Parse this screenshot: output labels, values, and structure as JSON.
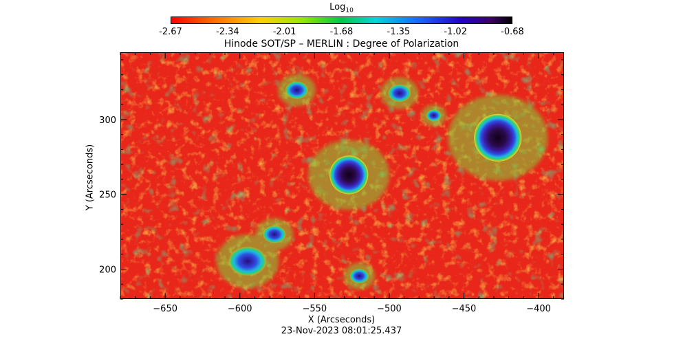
{
  "chart_data": {
    "type": "heatmap",
    "title": "Hinode SOT/SP – MERLIN : Degree of Polarization",
    "colorbar": {
      "label": "Log",
      "label_subscript": "10",
      "ticks": [
        "-2.67",
        "-2.34",
        "-2.01",
        "-1.68",
        "-1.35",
        "-1.02",
        "-0.68"
      ],
      "range": [
        -2.67,
        -0.68
      ],
      "colormap": "rainbow (red → yellow → green → cyan → blue → violet → black)"
    },
    "xlabel": "X (Arcseconds)",
    "ylabel": "Y (Arcseconds)",
    "xlim": [
      -680,
      -383
    ],
    "ylim": [
      180,
      345
    ],
    "x_ticks": [
      "−650",
      "−600",
      "−550",
      "−500",
      "−450",
      "−400"
    ],
    "x_tick_values": [
      -650,
      -600,
      -550,
      -500,
      -450,
      -400
    ],
    "y_ticks": [
      "200",
      "250",
      "300"
    ],
    "y_tick_values": [
      200,
      250,
      300
    ],
    "features": [
      {
        "name": "sunspot",
        "x": -427,
        "y": 288,
        "r": 16
      },
      {
        "name": "sunspot",
        "x": -527,
        "y": 263,
        "r": 13
      },
      {
        "name": "pore cluster",
        "x": -595,
        "y": 205,
        "r": 10
      },
      {
        "name": "pore cluster",
        "x": -577,
        "y": 223,
        "r": 6
      },
      {
        "name": "pore",
        "x": -493,
        "y": 318,
        "r": 6
      },
      {
        "name": "pore",
        "x": -562,
        "y": 320,
        "r": 6
      },
      {
        "name": "pore",
        "x": -520,
        "y": 195,
        "r": 5
      },
      {
        "name": "pore",
        "x": -470,
        "y": 303,
        "r": 4
      }
    ],
    "grid": false
  },
  "footer": {
    "timestamp": "23-Nov-2023 08:01:25.437"
  },
  "colors": {
    "quiet_sun": "#e8261a",
    "network": "#f4d21c",
    "plage": "#2aa84a",
    "penumbra": "#2f4be0",
    "umbra": "#2a0a4a"
  }
}
